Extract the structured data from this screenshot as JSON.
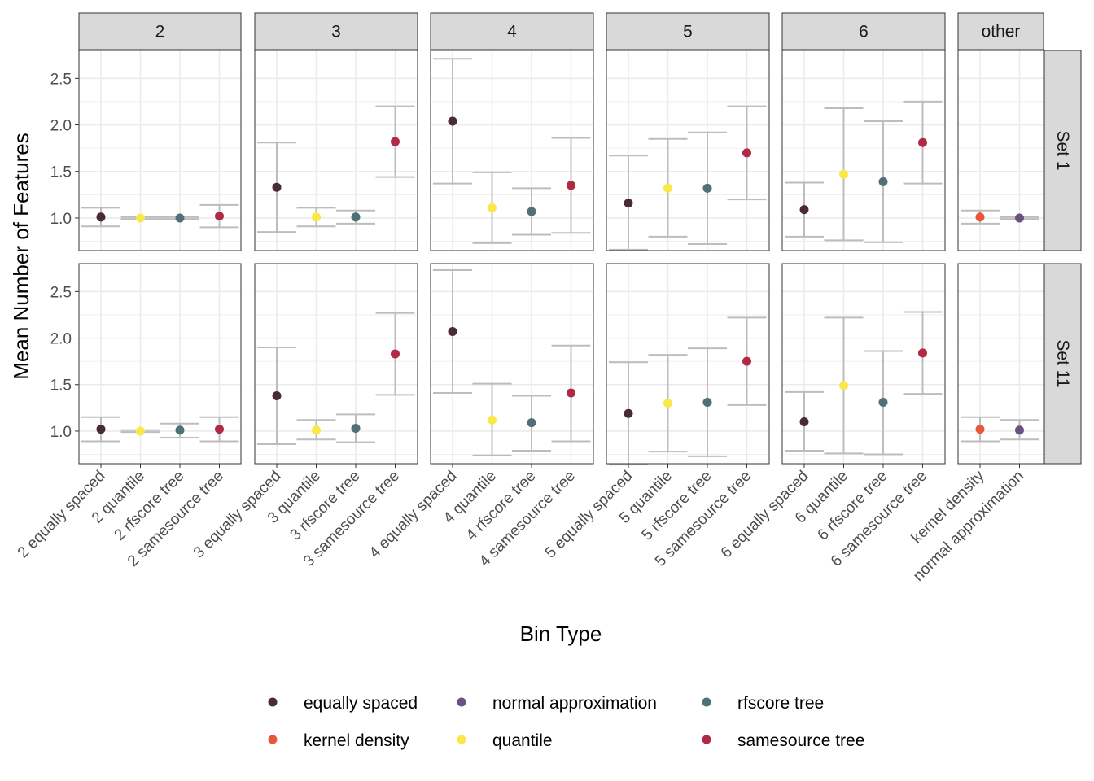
{
  "chart_data": {
    "type": "scatter",
    "subtype": "point-with-errorbars, faceted grid",
    "xlabel": "Bin Type",
    "ylabel": "Mean Number of Features",
    "ylim": [
      0.65,
      2.8
    ],
    "yticks": [
      1.0,
      1.5,
      2.0,
      2.5
    ],
    "ytick_labels": [
      "1.0",
      "1.5",
      "2.0",
      "2.5"
    ],
    "grid": true,
    "legend_position": "bottom",
    "col_facets": [
      {
        "label": "2",
        "categories": [
          "2 equally spaced",
          "2 quantile",
          "2 rfscore tree",
          "2 samesource tree"
        ]
      },
      {
        "label": "3",
        "categories": [
          "3 equally spaced",
          "3 quantile",
          "3 rfscore tree",
          "3 samesource tree"
        ]
      },
      {
        "label": "4",
        "categories": [
          "4 equally spaced",
          "4 quantile",
          "4 rfscore tree",
          "4 samesource tree"
        ]
      },
      {
        "label": "5",
        "categories": [
          "5 equally spaced",
          "5 quantile",
          "5 rfscore tree",
          "5 samesource tree"
        ]
      },
      {
        "label": "6",
        "categories": [
          "6 equally spaced",
          "6 quantile",
          "6 rfscore tree",
          "6 samesource tree"
        ]
      },
      {
        "label": "other",
        "categories": [
          "kernel density",
          "normal approximation"
        ]
      }
    ],
    "row_facets": [
      "Set 1",
      "Set 11"
    ],
    "legend": [
      {
        "name": "equally spaced",
        "color": "#4a2b35"
      },
      {
        "name": "normal approximation",
        "color": "#6a5180"
      },
      {
        "name": "rfscore tree",
        "color": "#4f7078"
      },
      {
        "name": "kernel density",
        "color": "#e8573a"
      },
      {
        "name": "quantile",
        "color": "#fae84b"
      },
      {
        "name": "samesource tree",
        "color": "#b02a43"
      }
    ],
    "points": {
      "Set 1": [
        [
          {
            "m": 1.01,
            "lo": 0.91,
            "hi": 1.11,
            "g": "equally spaced"
          },
          {
            "m": 1.0,
            "lo": 0.99,
            "hi": 1.01,
            "g": "quantile"
          },
          {
            "m": 1.0,
            "lo": 0.99,
            "hi": 1.01,
            "g": "rfscore tree"
          },
          {
            "m": 1.02,
            "lo": 0.9,
            "hi": 1.14,
            "g": "samesource tree"
          }
        ],
        [
          {
            "m": 1.33,
            "lo": 0.85,
            "hi": 1.81,
            "g": "equally spaced"
          },
          {
            "m": 1.01,
            "lo": 0.91,
            "hi": 1.11,
            "g": "quantile"
          },
          {
            "m": 1.01,
            "lo": 0.94,
            "hi": 1.08,
            "g": "rfscore tree"
          },
          {
            "m": 1.82,
            "lo": 1.44,
            "hi": 2.2,
            "g": "samesource tree"
          }
        ],
        [
          {
            "m": 2.04,
            "lo": 1.37,
            "hi": 2.71,
            "g": "equally spaced"
          },
          {
            "m": 1.11,
            "lo": 0.73,
            "hi": 1.49,
            "g": "quantile"
          },
          {
            "m": 1.07,
            "lo": 0.82,
            "hi": 1.32,
            "g": "rfscore tree"
          },
          {
            "m": 1.35,
            "lo": 0.84,
            "hi": 1.86,
            "g": "samesource tree"
          }
        ],
        [
          {
            "m": 1.16,
            "lo": 0.66,
            "hi": 1.67,
            "g": "equally spaced"
          },
          {
            "m": 1.32,
            "lo": 0.8,
            "hi": 1.85,
            "g": "quantile"
          },
          {
            "m": 1.32,
            "lo": 0.72,
            "hi": 1.92,
            "g": "rfscore tree"
          },
          {
            "m": 1.7,
            "lo": 1.2,
            "hi": 2.2,
            "g": "samesource tree"
          }
        ],
        [
          {
            "m": 1.09,
            "lo": 0.8,
            "hi": 1.38,
            "g": "equally spaced"
          },
          {
            "m": 1.47,
            "lo": 0.76,
            "hi": 2.18,
            "g": "quantile"
          },
          {
            "m": 1.39,
            "lo": 0.74,
            "hi": 2.04,
            "g": "rfscore tree"
          },
          {
            "m": 1.81,
            "lo": 1.37,
            "hi": 2.25,
            "g": "samesource tree"
          }
        ],
        [
          {
            "m": 1.01,
            "lo": 0.94,
            "hi": 1.08,
            "g": "kernel density"
          },
          {
            "m": 1.0,
            "lo": 0.99,
            "hi": 1.01,
            "g": "normal approximation"
          }
        ]
      ],
      "Set 11": [
        [
          {
            "m": 1.02,
            "lo": 0.89,
            "hi": 1.15,
            "g": "equally spaced"
          },
          {
            "m": 1.0,
            "lo": 0.99,
            "hi": 1.01,
            "g": "quantile"
          },
          {
            "m": 1.01,
            "lo": 0.93,
            "hi": 1.08,
            "g": "rfscore tree"
          },
          {
            "m": 1.02,
            "lo": 0.89,
            "hi": 1.15,
            "g": "samesource tree"
          }
        ],
        [
          {
            "m": 1.38,
            "lo": 0.86,
            "hi": 1.9,
            "g": "equally spaced"
          },
          {
            "m": 1.01,
            "lo": 0.91,
            "hi": 1.12,
            "g": "quantile"
          },
          {
            "m": 1.03,
            "lo": 0.88,
            "hi": 1.18,
            "g": "rfscore tree"
          },
          {
            "m": 1.83,
            "lo": 1.39,
            "hi": 2.27,
            "g": "samesource tree"
          }
        ],
        [
          {
            "m": 2.07,
            "lo": 1.41,
            "hi": 2.73,
            "g": "equally spaced"
          },
          {
            "m": 1.12,
            "lo": 0.74,
            "hi": 1.51,
            "g": "quantile"
          },
          {
            "m": 1.09,
            "lo": 0.79,
            "hi": 1.38,
            "g": "rfscore tree"
          },
          {
            "m": 1.41,
            "lo": 0.89,
            "hi": 1.92,
            "g": "samesource tree"
          }
        ],
        [
          {
            "m": 1.19,
            "lo": 0.64,
            "hi": 1.74,
            "g": "equally spaced"
          },
          {
            "m": 1.3,
            "lo": 0.78,
            "hi": 1.82,
            "g": "quantile"
          },
          {
            "m": 1.31,
            "lo": 0.73,
            "hi": 1.89,
            "g": "rfscore tree"
          },
          {
            "m": 1.75,
            "lo": 1.28,
            "hi": 2.22,
            "g": "samesource tree"
          }
        ],
        [
          {
            "m": 1.1,
            "lo": 0.79,
            "hi": 1.42,
            "g": "equally spaced"
          },
          {
            "m": 1.49,
            "lo": 0.76,
            "hi": 2.22,
            "g": "quantile"
          },
          {
            "m": 1.31,
            "lo": 0.75,
            "hi": 1.86,
            "g": "rfscore tree"
          },
          {
            "m": 1.84,
            "lo": 1.4,
            "hi": 2.28,
            "g": "samesource tree"
          }
        ],
        [
          {
            "m": 1.02,
            "lo": 0.89,
            "hi": 1.15,
            "g": "kernel density"
          },
          {
            "m": 1.01,
            "lo": 0.91,
            "hi": 1.12,
            "g": "normal approximation"
          }
        ]
      ]
    }
  }
}
